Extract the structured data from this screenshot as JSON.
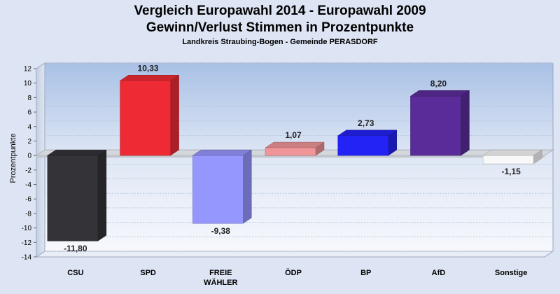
{
  "chart_data": {
    "type": "bar",
    "title_lines": [
      "Vergleich Europawahl 2014 - Europawahl 2009",
      "Gewinn/Verlust Stimmen in Prozentpunkte"
    ],
    "subtitle": "Landkreis Straubing-Bogen - Gemeinde PERASDORF",
    "ylabel": "Prozentpunkte",
    "ylim": [
      -14,
      12
    ],
    "yticks": [
      -14,
      -12,
      -10,
      -8,
      -6,
      -4,
      -2,
      0,
      2,
      4,
      6,
      8,
      10,
      12
    ],
    "categories": [
      {
        "lines": [
          "CSU"
        ]
      },
      {
        "lines": [
          "SPD"
        ]
      },
      {
        "lines": [
          "FREIE",
          "WÄHLER"
        ]
      },
      {
        "lines": [
          "ÖDP"
        ]
      },
      {
        "lines": [
          "BP"
        ]
      },
      {
        "lines": [
          "AfD"
        ]
      },
      {
        "lines": [
          "Sonstige"
        ]
      }
    ],
    "values": [
      -11.8,
      10.33,
      -9.38,
      1.07,
      2.73,
      8.2,
      -1.15
    ],
    "value_labels": [
      "-11,80",
      "10,33",
      "-9,38",
      "1,07",
      "2,73",
      "8,20",
      "-1,15"
    ],
    "colors": [
      "#333338",
      "#ee2b35",
      "#9696ff",
      "#f09598",
      "#2323f5",
      "#5a2c9a",
      "#f8f8f8"
    ]
  }
}
